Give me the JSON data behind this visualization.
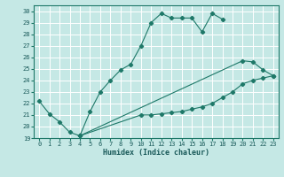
{
  "xlabel": "Humidex (Indice chaleur)",
  "bg_color": "#c5e8e5",
  "grid_color": "#ffffff",
  "line_color": "#1e7868",
  "xlim": [
    -0.5,
    23.5
  ],
  "ylim": [
    19,
    30.5
  ],
  "yticks": [
    19,
    20,
    21,
    22,
    23,
    24,
    25,
    26,
    27,
    28,
    29,
    30
  ],
  "xticks": [
    0,
    1,
    2,
    3,
    4,
    5,
    6,
    7,
    8,
    9,
    10,
    11,
    12,
    13,
    14,
    15,
    16,
    17,
    18,
    19,
    20,
    21,
    22,
    23
  ],
  "series": [
    {
      "x": [
        0,
        1,
        2,
        3,
        4,
        5,
        6,
        7,
        8,
        9,
        10,
        11,
        12,
        13,
        14,
        15,
        16,
        17,
        18
      ],
      "y": [
        22.2,
        21.1,
        20.4,
        19.5,
        19.2,
        21.3,
        23.0,
        24.0,
        24.9,
        25.4,
        27.0,
        29.0,
        29.8,
        29.4,
        29.4,
        29.4,
        28.2,
        29.8,
        29.3
      ]
    },
    {
      "x": [
        4,
        20,
        21,
        22,
        23
      ],
      "y": [
        19.2,
        25.7,
        25.6,
        24.9,
        24.4
      ]
    },
    {
      "x": [
        4,
        10,
        11,
        12,
        13,
        14,
        15,
        16,
        17,
        18,
        19,
        20,
        21,
        22,
        23
      ],
      "y": [
        19.2,
        21.0,
        21.0,
        21.1,
        21.2,
        21.3,
        21.5,
        21.7,
        22.0,
        22.5,
        23.0,
        23.7,
        24.0,
        24.2,
        24.4
      ]
    }
  ]
}
